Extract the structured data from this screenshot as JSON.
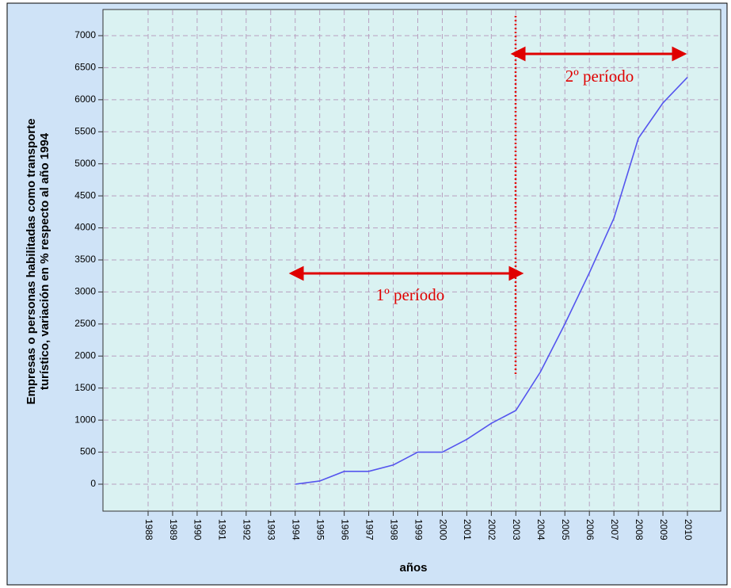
{
  "chart_data": {
    "type": "line",
    "ylabel": [
      "Empresas o personas habilitadas como transporte",
      "turístico, variación en % respecto al año 1994"
    ],
    "xlabel": "años",
    "categories": [
      "1988",
      "1989",
      "1990",
      "1991",
      "1992",
      "1993",
      "1994",
      "1995",
      "1996",
      "1997",
      "1998",
      "1999",
      "2000",
      "2001",
      "2002",
      "2003",
      "2004",
      "2005",
      "2006",
      "2007",
      "2008",
      "2009",
      "2010"
    ],
    "series": [
      {
        "name": null,
        "color": "#5555ee",
        "values": [
          null,
          null,
          null,
          null,
          null,
          null,
          0,
          50,
          200,
          200,
          300,
          500,
          500,
          700,
          950,
          1150,
          1750,
          2500,
          3300,
          4150,
          5400,
          5950,
          6350
        ]
      }
    ],
    "ylim": [
      0,
      7000
    ],
    "yticks": [
      0,
      500,
      1000,
      1500,
      2000,
      2500,
      3000,
      3500,
      4000,
      4500,
      5000,
      5500,
      6000,
      6500,
      7000
    ],
    "grid": true,
    "annotations": [
      "1º período",
      "2º período"
    ]
  }
}
